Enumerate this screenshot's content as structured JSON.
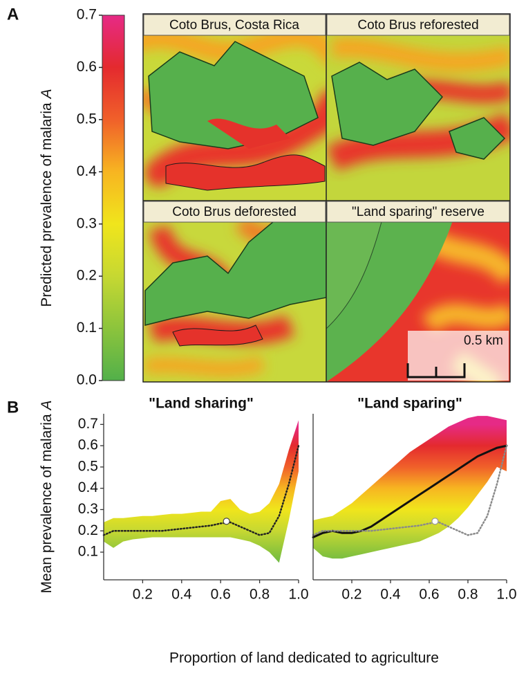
{
  "panel_labels": [
    "A",
    "B"
  ],
  "maps": {
    "titles": [
      "Coto Brus, Costa Rica",
      "Coto Brus reforested",
      "Coto Brus deforested",
      "\"Land sparing\" reserve"
    ],
    "scale_label": "0.5 km"
  },
  "x_label": "Proportion of land dedicated to agriculture",
  "chart_data": [
    {
      "type": "colorbar",
      "y_label": "Predicted prevalence of malaria",
      "y_label_symbol": "A",
      "ylim": [
        0,
        0.7
      ],
      "yticks": [
        {
          "value": 0,
          "label": "0.0"
        },
        0.1,
        0.2,
        0.3,
        0.4,
        0.5,
        0.6,
        0.7
      ],
      "colors": [
        "#52b04a",
        "#8cc43c",
        "#c6d832",
        "#f0e51c",
        "#f7b521",
        "#f0602a",
        "#e42a2e",
        "#e62a86"
      ]
    },
    {
      "type": "band",
      "title": "\"Land sharing\"",
      "y_label": "Mean prevalence of malaria",
      "y_label_symbol": "A",
      "x": [
        0,
        0.05,
        0.1,
        0.15,
        0.2,
        0.25,
        0.3,
        0.35,
        0.4,
        0.45,
        0.5,
        0.55,
        0.6,
        0.65,
        0.7,
        0.75,
        0.8,
        0.85,
        0.9,
        0.95,
        1
      ],
      "band": {
        "upper": [
          0.24,
          0.26,
          0.26,
          0.265,
          0.27,
          0.27,
          0.275,
          0.28,
          0.28,
          0.285,
          0.29,
          0.29,
          0.34,
          0.35,
          0.3,
          0.28,
          0.29,
          0.33,
          0.42,
          0.58,
          0.72
        ],
        "lower": [
          0.15,
          0.12,
          0.15,
          0.16,
          0.165,
          0.17,
          0.17,
          0.17,
          0.17,
          0.17,
          0.17,
          0.17,
          0.17,
          0.17,
          0.16,
          0.15,
          0.13,
          0.1,
          0.05,
          0.25,
          0.48
        ]
      },
      "series": [
        {
          "values": [
            0.18,
            0.2,
            0.2,
            0.2,
            0.2,
            0.2,
            0.2,
            0.205,
            0.21,
            0.215,
            0.22,
            0.225,
            0.235,
            0.24,
            0.22,
            0.2,
            0.18,
            0.19,
            0.27,
            0.42,
            0.6
          ],
          "color": "#222222",
          "dash": "dotted"
        }
      ],
      "marker": {
        "x": 0.63,
        "y": 0.245
      },
      "xlim": [
        0,
        1
      ],
      "ylim": [
        -0.03,
        0.75
      ],
      "xticks": [
        0.2,
        0.4,
        0.6,
        0.8,
        {
          "value": 1,
          "label": "1.0"
        }
      ],
      "yticks": [
        0.1,
        0.2,
        0.3,
        0.4,
        0.5,
        0.6,
        0.7
      ]
    },
    {
      "type": "band",
      "title": "\"Land sparing\"",
      "x": [
        0,
        0.05,
        0.1,
        0.15,
        0.2,
        0.25,
        0.3,
        0.35,
        0.4,
        0.45,
        0.5,
        0.55,
        0.6,
        0.65,
        0.7,
        0.75,
        0.8,
        0.85,
        0.9,
        0.95,
        1
      ],
      "band": {
        "upper": [
          0.25,
          0.26,
          0.27,
          0.3,
          0.33,
          0.37,
          0.41,
          0.45,
          0.49,
          0.53,
          0.57,
          0.6,
          0.63,
          0.66,
          0.69,
          0.71,
          0.73,
          0.74,
          0.74,
          0.73,
          0.72
        ],
        "lower": [
          0.12,
          0.08,
          0.07,
          0.07,
          0.08,
          0.09,
          0.1,
          0.11,
          0.12,
          0.13,
          0.14,
          0.15,
          0.17,
          0.19,
          0.22,
          0.26,
          0.31,
          0.37,
          0.43,
          0.5,
          0.48
        ]
      },
      "series": [
        {
          "values": [
            0.17,
            0.19,
            0.2,
            0.19,
            0.19,
            0.2,
            0.22,
            0.25,
            0.28,
            0.31,
            0.34,
            0.37,
            0.4,
            0.43,
            0.46,
            0.49,
            0.52,
            0.55,
            0.57,
            0.59,
            0.6
          ],
          "color": "#111111",
          "dash": "solid"
        },
        {
          "values": [
            0.18,
            0.2,
            0.2,
            0.2,
            0.2,
            0.2,
            0.2,
            0.205,
            0.21,
            0.215,
            0.22,
            0.225,
            0.235,
            0.24,
            0.22,
            0.2,
            0.18,
            0.19,
            0.27,
            0.42,
            0.6
          ],
          "color": "#8a8a8a",
          "dash": "dotted"
        }
      ],
      "marker": {
        "x": 0.63,
        "y": 0.245
      },
      "xlim": [
        0,
        1
      ],
      "ylim": [
        -0.03,
        0.75
      ],
      "xticks": [
        0.2,
        0.4,
        0.6,
        0.8,
        {
          "value": 1,
          "label": "1.0"
        }
      ]
    }
  ]
}
